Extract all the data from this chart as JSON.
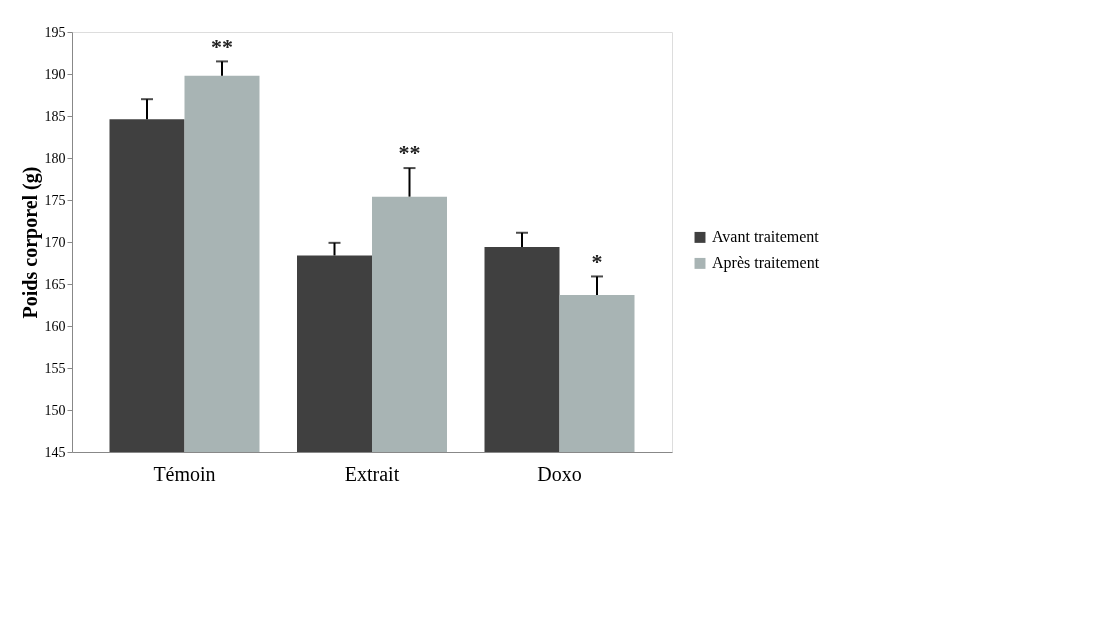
{
  "chart_data": {
    "type": "bar",
    "ylabel": "Poids corporel (g)",
    "categories": [
      "Témoin",
      "Extrait",
      "Doxo"
    ],
    "series": [
      {
        "name": "Avant traitement",
        "color": "#404040",
        "values": [
          184.6,
          168.4,
          169.4
        ],
        "errors": [
          [
            184.6,
            187.0
          ],
          [
            168.4,
            169.9
          ],
          [
            169.4,
            171.1
          ]
        ]
      },
      {
        "name": "Après traitement",
        "color": "#a8b4b4",
        "values": [
          189.8,
          175.4,
          163.7
        ],
        "errors": [
          [
            189.8,
            191.5
          ],
          [
            175.4,
            178.8
          ],
          [
            163.7,
            165.9
          ]
        ]
      }
    ],
    "ylim": [
      145,
      195
    ],
    "yticks": [
      145,
      150,
      155,
      160,
      165,
      170,
      175,
      180,
      185,
      190,
      195
    ],
    "annotations": [
      "**",
      "**",
      "*"
    ],
    "grid": false,
    "legend": "right"
  }
}
